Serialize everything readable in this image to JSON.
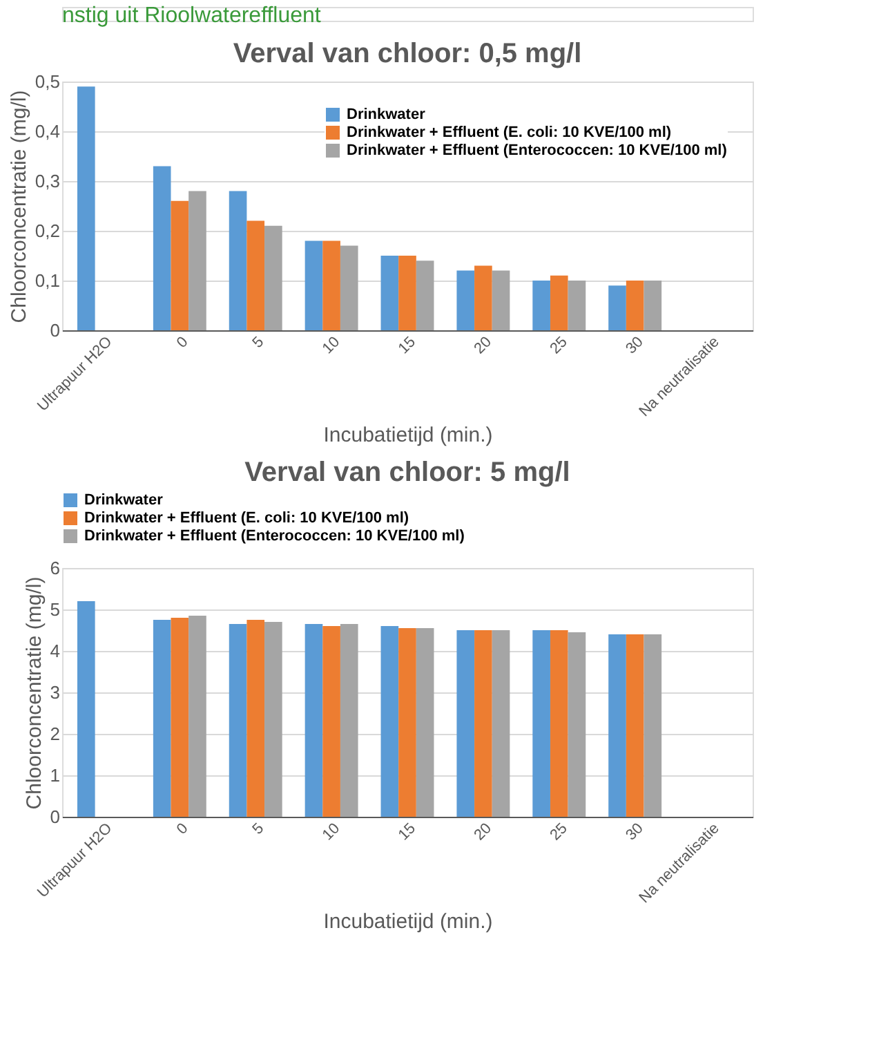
{
  "chart_data": [
    {
      "type": "bar",
      "title": "Verval van chloor: 0,5 mg/l",
      "annotations": [
        "nstig uit Rioolwatereffluent"
      ],
      "xlabel": "Incubatietijd (min.)",
      "ylabel": "Chloorconcentratie (mg/l)",
      "categories": [
        "Ultrapuur H2O",
        "0",
        "5",
        "10",
        "15",
        "20",
        "25",
        "30",
        "Na neutralisatie"
      ],
      "series": [
        {
          "name": "Drinkwater",
          "color": "#5b9bd5",
          "values": [
            0.49,
            0.33,
            0.28,
            0.18,
            0.15,
            0.12,
            0.1,
            0.09,
            0
          ]
        },
        {
          "name": "Drinkwater + Effluent (E. coli: 10 KVE/100 ml)",
          "color": "#ed7d31",
          "values": [
            null,
            0.26,
            0.22,
            0.18,
            0.15,
            0.13,
            0.11,
            0.1,
            0
          ]
        },
        {
          "name": "Drinkwater + Effluent (Enterococcen: 10 KVE/100 ml)",
          "color": "#a5a5a5",
          "values": [
            null,
            0.28,
            0.21,
            0.17,
            0.14,
            0.12,
            0.1,
            0.1,
            0
          ]
        }
      ],
      "ylim": [
        0,
        0.5
      ],
      "yticks": [
        0,
        {
          "value": 0.1,
          "label": "0,1"
        },
        {
          "value": 0.2,
          "label": "0,2"
        },
        {
          "value": 0.3,
          "label": "0,3"
        },
        {
          "value": 0.4,
          "label": "0,4"
        },
        {
          "value": 0.5,
          "label": "0,5"
        }
      ],
      "grid": "y",
      "legend": "top right"
    },
    {
      "type": "bar",
      "title": "Verval van chloor: 5 mg/l",
      "xlabel": "Incubatietijd (min.)",
      "ylabel": "Chloorconcentratie (mg/l)",
      "categories": [
        "Ultrapuur H2O",
        "0",
        "5",
        "10",
        "15",
        "20",
        "25",
        "30",
        "Na neutralisatie"
      ],
      "series": [
        {
          "name": "Drinkwater",
          "color": "#5b9bd5",
          "values": [
            5.2,
            4.75,
            4.65,
            4.65,
            4.6,
            4.5,
            4.5,
            4.4,
            0
          ]
        },
        {
          "name": "Drinkwater + Effluent (E. coli: 10 KVE/100 ml)",
          "color": "#ed7d31",
          "values": [
            null,
            4.8,
            4.75,
            4.6,
            4.55,
            4.5,
            4.5,
            4.4,
            0
          ]
        },
        {
          "name": "Drinkwater + Effluent (Enterococcen: 10 KVE/100 ml)",
          "color": "#a5a5a5",
          "values": [
            null,
            4.85,
            4.7,
            4.65,
            4.55,
            4.5,
            4.45,
            4.4,
            null
          ]
        }
      ],
      "ylim": [
        0,
        6
      ],
      "yticks": [
        0,
        1,
        2,
        3,
        4,
        5,
        6
      ],
      "grid": "y",
      "legend": "top"
    }
  ]
}
